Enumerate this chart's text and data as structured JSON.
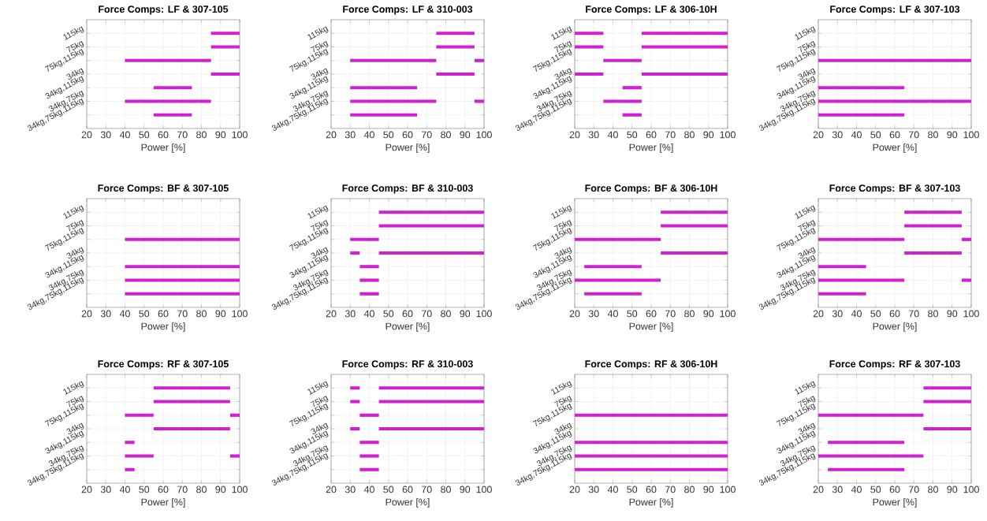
{
  "chart_data": [
    {
      "type": "bar",
      "orientation": "horizontal",
      "title": "Force Comps: LF & 307-105",
      "xlabel": "Power [%]",
      "categories": [
        "115kg",
        "75kg",
        "75kg,115kg",
        "34kg",
        "34kg,115kg",
        "34kg,75kg",
        "34kg,75kg,115kg"
      ],
      "xlim": [
        20,
        100
      ],
      "xticks": [
        20,
        30,
        40,
        50,
        60,
        70,
        80,
        90,
        100
      ],
      "grid": true,
      "series": [
        {
          "color": "#d020d0",
          "base": [
            85,
            85,
            40,
            85,
            55,
            40,
            55
          ],
          "values": [
            15,
            15,
            45,
            15,
            20,
            45,
            20
          ]
        }
      ]
    },
    {
      "type": "bar",
      "orientation": "horizontal",
      "title": "Force Comps: LF & 310-003",
      "xlabel": "Power [%]",
      "categories": [
        "115kg",
        "75kg",
        "75kg,115kg",
        "34kg",
        "34kg,115kg",
        "34kg,75kg",
        "34kg,75kg,115kg"
      ],
      "xlim": [
        20,
        100
      ],
      "xticks": [
        20,
        30,
        40,
        50,
        60,
        70,
        80,
        90,
        100
      ],
      "grid": true,
      "series": [
        {
          "color": "#d020d0",
          "base": [
            75,
            75,
            30,
            75,
            30,
            30,
            30
          ],
          "values": [
            20,
            20,
            45,
            20,
            35,
            45,
            35
          ]
        },
        {
          "color": "#d020d0",
          "base": [
            null,
            null,
            95,
            null,
            null,
            95,
            null
          ],
          "values": [
            null,
            null,
            5,
            null,
            null,
            5,
            null
          ]
        }
      ]
    },
    {
      "type": "bar",
      "orientation": "horizontal",
      "title": "Force Comps: LF & 306-10H",
      "xlabel": "Power [%]",
      "categories": [
        "115kg",
        "75kg",
        "75kg,115kg",
        "34kg",
        "34kg,115kg",
        "34kg,75kg",
        "34kg,75kg,115kg"
      ],
      "xlim": [
        20,
        100
      ],
      "xticks": [
        20,
        30,
        40,
        50,
        60,
        70,
        80,
        90,
        100
      ],
      "grid": true,
      "series": [
        {
          "color": "#d020d0",
          "base": [
            20,
            20,
            35,
            20,
            45,
            35,
            45
          ],
          "values": [
            15,
            15,
            20,
            15,
            10,
            20,
            10
          ]
        },
        {
          "color": "#d020d0",
          "base": [
            55,
            55,
            null,
            55,
            null,
            null,
            null
          ],
          "values": [
            45,
            45,
            null,
            45,
            null,
            null,
            null
          ]
        }
      ]
    },
    {
      "type": "bar",
      "orientation": "horizontal",
      "title": "Force Comps: LF & 307-103",
      "xlabel": "Power [%]",
      "categories": [
        "115kg",
        "75kg",
        "75kg,115kg",
        "34kg",
        "34kg,115kg",
        "34kg,75kg",
        "34kg,75kg,115kg"
      ],
      "xlim": [
        20,
        100
      ],
      "xticks": [
        20,
        30,
        40,
        50,
        60,
        70,
        80,
        90,
        100
      ],
      "grid": true,
      "series": [
        {
          "color": "#d020d0",
          "base": [
            null,
            null,
            20,
            null,
            20,
            20,
            20
          ],
          "values": [
            null,
            null,
            80,
            null,
            45,
            80,
            45
          ]
        }
      ]
    },
    {
      "type": "bar",
      "orientation": "horizontal",
      "title": "Force Comps: BF & 307-105",
      "xlabel": "Power [%]",
      "categories": [
        "115kg",
        "75kg",
        "75kg,115kg",
        "34kg",
        "34kg,115kg",
        "34kg,75kg",
        "34kg,75kg,115kg"
      ],
      "xlim": [
        20,
        100
      ],
      "xticks": [
        20,
        30,
        40,
        50,
        60,
        70,
        80,
        90,
        100
      ],
      "grid": true,
      "series": [
        {
          "color": "#d020d0",
          "base": [
            null,
            null,
            40,
            null,
            40,
            40,
            40
          ],
          "values": [
            null,
            null,
            60,
            null,
            60,
            60,
            60
          ]
        }
      ]
    },
    {
      "type": "bar",
      "orientation": "horizontal",
      "title": "Force Comps: BF & 310-003",
      "xlabel": "Power [%]",
      "categories": [
        "115kg",
        "75kg",
        "75kg,115kg",
        "34kg",
        "34kg,115kg",
        "34kg,75kg",
        "34kg,75kg,115kg"
      ],
      "xlim": [
        20,
        100
      ],
      "xticks": [
        20,
        30,
        40,
        50,
        60,
        70,
        80,
        90,
        100
      ],
      "grid": true,
      "series": [
        {
          "color": "#d020d0",
          "base": [
            45,
            45,
            30,
            30,
            35,
            35,
            35
          ],
          "values": [
            55,
            55,
            15,
            5,
            10,
            10,
            10
          ]
        },
        {
          "color": "#d020d0",
          "base": [
            null,
            null,
            null,
            45,
            null,
            null,
            null
          ],
          "values": [
            null,
            null,
            null,
            55,
            null,
            null,
            null
          ]
        }
      ]
    },
    {
      "type": "bar",
      "orientation": "horizontal",
      "title": "Force Comps: BF & 306-10H",
      "xlabel": "Power [%]",
      "categories": [
        "115kg",
        "75kg",
        "75kg,115kg",
        "34kg",
        "34kg,115kg",
        "34kg,75kg",
        "34kg,75kg,115kg"
      ],
      "xlim": [
        20,
        100
      ],
      "xticks": [
        20,
        30,
        40,
        50,
        60,
        70,
        80,
        90,
        100
      ],
      "grid": true,
      "series": [
        {
          "color": "#d020d0",
          "base": [
            65,
            65,
            20,
            65,
            25,
            20,
            25
          ],
          "values": [
            35,
            35,
            45,
            35,
            30,
            45,
            30
          ]
        }
      ]
    },
    {
      "type": "bar",
      "orientation": "horizontal",
      "title": "Force Comps: BF & 307-103",
      "xlabel": "Power [%]",
      "categories": [
        "115kg",
        "75kg",
        "75kg,115kg",
        "34kg",
        "34kg,115kg",
        "34kg,75kg",
        "34kg,75kg,115kg"
      ],
      "xlim": [
        20,
        100
      ],
      "xticks": [
        20,
        30,
        40,
        50,
        60,
        70,
        80,
        90,
        100
      ],
      "grid": true,
      "series": [
        {
          "color": "#d020d0",
          "base": [
            65,
            65,
            20,
            65,
            20,
            20,
            20
          ],
          "values": [
            30,
            30,
            45,
            30,
            25,
            45,
            25
          ]
        },
        {
          "color": "#d020d0",
          "base": [
            null,
            null,
            95,
            null,
            null,
            95,
            null
          ],
          "values": [
            null,
            null,
            5,
            null,
            null,
            5,
            null
          ]
        }
      ]
    },
    {
      "type": "bar",
      "orientation": "horizontal",
      "title": "Force Comps: RF & 307-105",
      "xlabel": "Power [%]",
      "categories": [
        "115kg",
        "75kg",
        "75kg,115kg",
        "34kg",
        "34kg,115kg",
        "34kg,75kg",
        "34kg,75kg,115kg"
      ],
      "xlim": [
        20,
        100
      ],
      "xticks": [
        20,
        30,
        40,
        50,
        60,
        70,
        80,
        90,
        100
      ],
      "grid": true,
      "series": [
        {
          "color": "#d020d0",
          "base": [
            55,
            55,
            40,
            55,
            40,
            40,
            40
          ],
          "values": [
            40,
            40,
            15,
            40,
            5,
            15,
            5
          ]
        },
        {
          "color": "#d020d0",
          "base": [
            null,
            null,
            95,
            null,
            null,
            95,
            null
          ],
          "values": [
            null,
            null,
            5,
            null,
            null,
            5,
            null
          ]
        }
      ]
    },
    {
      "type": "bar",
      "orientation": "horizontal",
      "title": "Force Comps: RF & 310-003",
      "xlabel": "Power [%]",
      "categories": [
        "115kg",
        "75kg",
        "75kg,115kg",
        "34kg",
        "34kg,115kg",
        "34kg,75kg",
        "34kg,75kg,115kg"
      ],
      "xlim": [
        20,
        100
      ],
      "xticks": [
        20,
        30,
        40,
        50,
        60,
        70,
        80,
        90,
        100
      ],
      "grid": true,
      "series": [
        {
          "color": "#d020d0",
          "base": [
            30,
            30,
            35,
            30,
            35,
            35,
            35
          ],
          "values": [
            5,
            5,
            10,
            5,
            10,
            10,
            10
          ]
        },
        {
          "color": "#d020d0",
          "base": [
            45,
            45,
            null,
            45,
            null,
            null,
            null
          ],
          "values": [
            55,
            55,
            null,
            55,
            null,
            null,
            null
          ]
        }
      ]
    },
    {
      "type": "bar",
      "orientation": "horizontal",
      "title": "Force Comps: RF & 306-10H",
      "xlabel": "Power [%]",
      "categories": [
        "115kg",
        "75kg",
        "75kg,115kg",
        "34kg",
        "34kg,115kg",
        "34kg,75kg",
        "34kg,75kg,115kg"
      ],
      "xlim": [
        20,
        100
      ],
      "xticks": [
        20,
        30,
        40,
        50,
        60,
        70,
        80,
        90,
        100
      ],
      "grid": true,
      "series": [
        {
          "color": "#d020d0",
          "base": [
            null,
            null,
            20,
            null,
            20,
            20,
            20
          ],
          "values": [
            null,
            null,
            80,
            null,
            80,
            80,
            80
          ]
        }
      ]
    },
    {
      "type": "bar",
      "orientation": "horizontal",
      "title": "Force Comps: RF & 307-103",
      "xlabel": "Power [%]",
      "categories": [
        "115kg",
        "75kg",
        "75kg,115kg",
        "34kg",
        "34kg,115kg",
        "34kg,75kg",
        "34kg,75kg,115kg"
      ],
      "xlim": [
        20,
        100
      ],
      "xticks": [
        20,
        30,
        40,
        50,
        60,
        70,
        80,
        90,
        100
      ],
      "grid": true,
      "series": [
        {
          "color": "#d020d0",
          "base": [
            75,
            75,
            20,
            75,
            25,
            20,
            25
          ],
          "values": [
            25,
            25,
            55,
            25,
            40,
            55,
            40
          ]
        }
      ]
    }
  ]
}
